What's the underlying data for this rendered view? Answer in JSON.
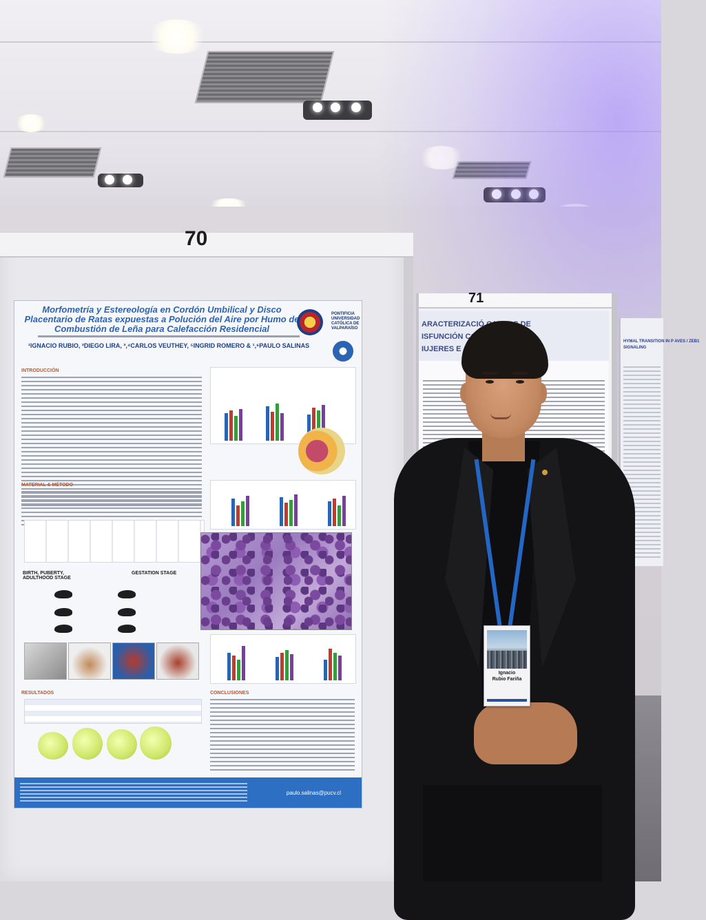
{
  "board_numbers": {
    "left": "70",
    "right": "71"
  },
  "poster_70": {
    "title": "Morfometría y Estereología en Cordón Umbilical y Disco Placentario de Ratas expuestas a Polución del Aire por Humo de Combustión de Leña para Calefacción Residencial",
    "authors": "¹IGNACIO RUBIO, ²DIEGO LIRA, ³,⁴CARLOS VEUTHEY, ⁵INGRID ROMERO & ¹,⁶PAULO SALINAS",
    "university": "PONTIFICIA UNIVERSIDAD CATÓLICA DE VALPARAÍSO",
    "sections": {
      "intro": "INTRODUCCIÓN",
      "methods": "MATERIAL & MÉTODO",
      "results": "RESULTADOS",
      "conclusions": "CONCLUSIONES"
    },
    "stages": {
      "birth": "BIRTH, PUBERTY, ADULTHOOD STAGE",
      "gestation": "GESTATION STAGE"
    },
    "email": "paulo.salinas@pucv.cl"
  },
  "poster_71": {
    "title_lines": [
      "ARACTERIZACIÓ    CAUSAS DE",
      "ISFUNCIÓN           COHORTES DE",
      "IUJERES E"
    ]
  },
  "poster_72": {
    "title": "HYMAL TRANSITION IN P AVES / ZEB1 SIGNALING"
  },
  "badge": {
    "line1": "Ignacio",
    "line2": "Rubio Fariña"
  },
  "colors": {
    "poster_title": "#2c64b4",
    "footer": "#2d6fc2",
    "section_head": "#c8541f",
    "lanyard": "#2466c4"
  }
}
